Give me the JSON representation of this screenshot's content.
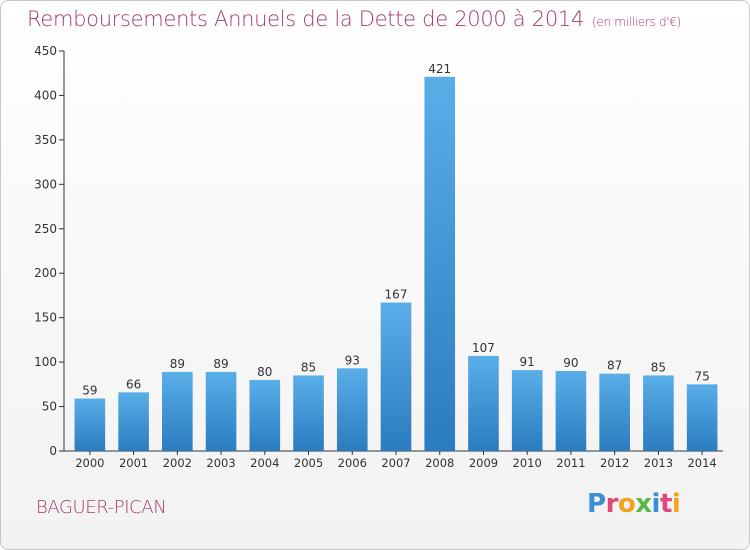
{
  "header": {
    "title": "Remboursements Annuels de la Dette de 2000 à 2014",
    "unit": "(en milliers d'€)"
  },
  "footer": {
    "commune": "BAGUER-PICAN",
    "logo_text": "Proxiti"
  },
  "colors": {
    "title": "#a33a6f",
    "bar_top": "#5aaee8",
    "bar_bottom": "#2a7cc0"
  },
  "chart_data": {
    "type": "bar",
    "title": "Remboursements Annuels de la Dette de 2000 à 2014",
    "xlabel": "",
    "ylabel": "",
    "ylim": [
      0,
      450
    ],
    "yticks": [
      0,
      50,
      100,
      150,
      200,
      250,
      300,
      350,
      400,
      450
    ],
    "grid": false,
    "categories": [
      "2000",
      "2001",
      "2002",
      "2003",
      "2004",
      "2005",
      "2006",
      "2007",
      "2008",
      "2009",
      "2010",
      "2011",
      "2012",
      "2013",
      "2014"
    ],
    "values": [
      59,
      66,
      89,
      89,
      80,
      85,
      93,
      167,
      421,
      107,
      91,
      90,
      87,
      85,
      75
    ]
  }
}
